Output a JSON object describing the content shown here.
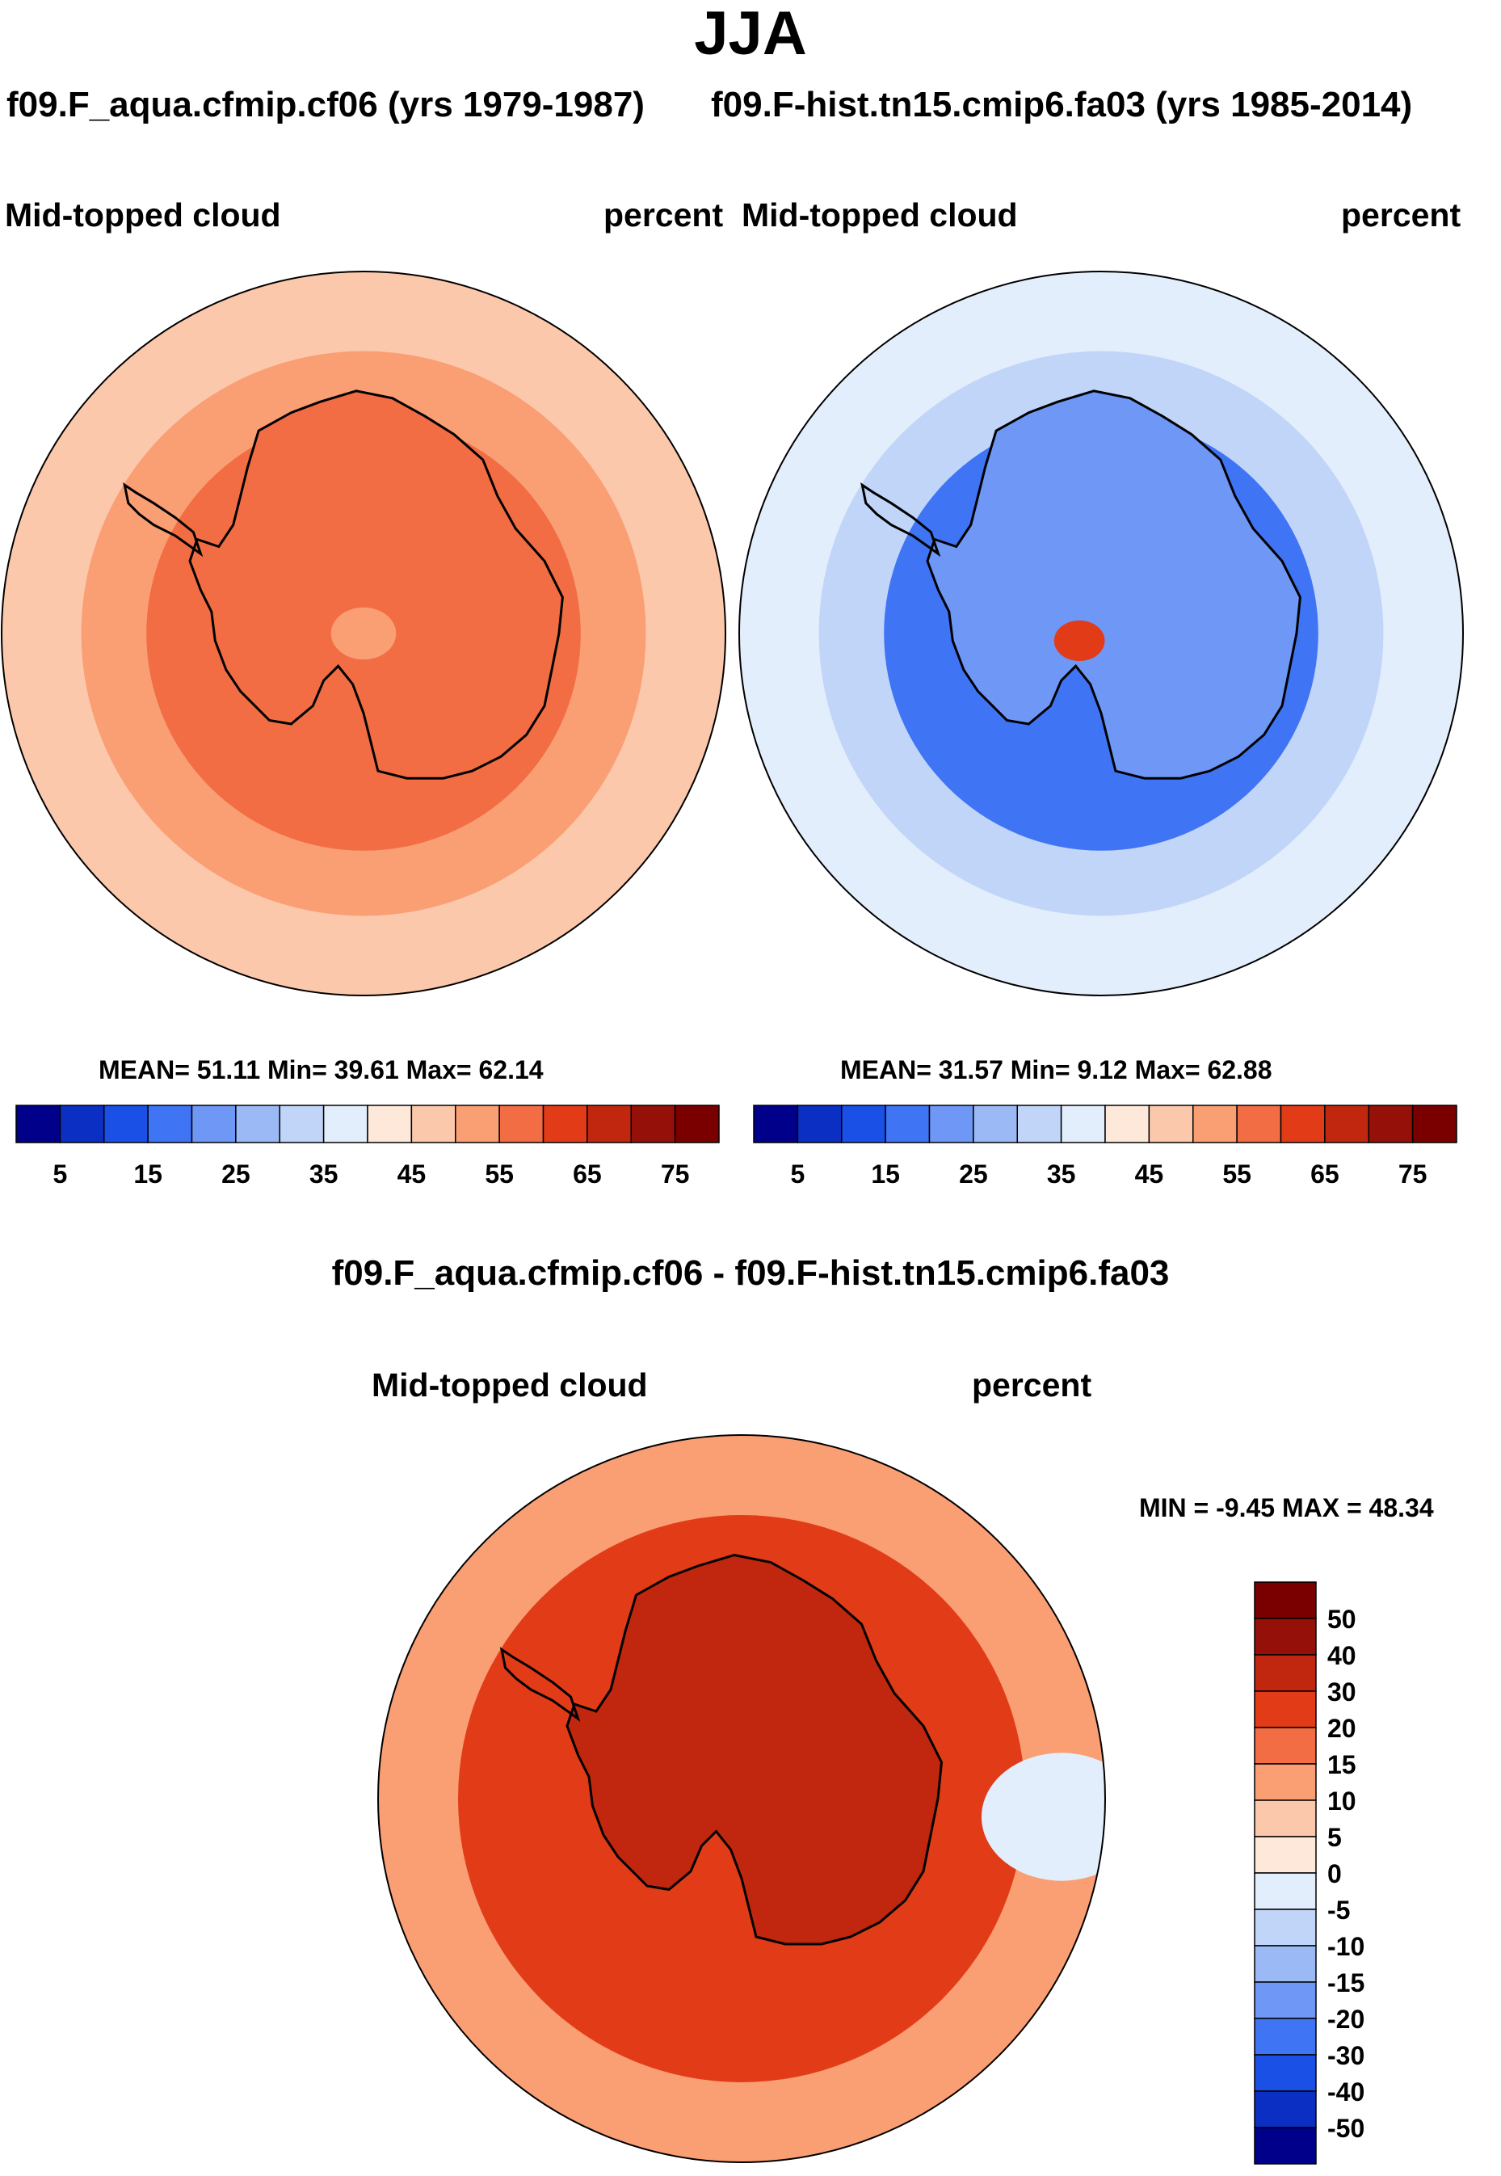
{
  "figure": {
    "title": "JJA",
    "panels": [
      {
        "name": "panel-left",
        "case_title": "f09.F_aqua.cfmip.cf06 (yrs 1979-1987)",
        "variable": "Mid-topped cloud",
        "units": "percent",
        "stats_text": "MEAN=  51.11  Min=  39.61  Max=  62.14"
      },
      {
        "name": "panel-right",
        "case_title": "f09.F-hist.tn15.cmip6.fa03 (yrs 1985-2014)",
        "variable": "Mid-topped cloud",
        "units": "percent",
        "stats_text": "MEAN=  31.57  Min=   9.12  Max=  62.88"
      }
    ],
    "difference": {
      "title": "f09.F_aqua.cfmip.cf06 - f09.F-hist.tn15.cmip6.fa03",
      "variable": "Mid-topped cloud",
      "units": "percent",
      "stats_text": "MIN =  -9.45 MAX =  48.34"
    }
  },
  "colors": {
    "abs_scale": [
      "#00008b",
      "#0a2fc2",
      "#1b50e6",
      "#3f74f5",
      "#6f97f5",
      "#9bb9f4",
      "#c1d5f8",
      "#e3eefc",
      "#fde8da",
      "#fcc8ab",
      "#fa9e74",
      "#f26d43",
      "#e23b17",
      "#c0270e",
      "#941009",
      "#7a0000"
    ],
    "diff_scale": [
      "#00008b",
      "#0a2fc2",
      "#1b50e6",
      "#3f74f5",
      "#6f97f5",
      "#9bb9f4",
      "#c1d5f8",
      "#e3eefc",
      "#fde8da",
      "#fcc8ab",
      "#fa9e74",
      "#f26d43",
      "#e23b17",
      "#c0270e",
      "#941009",
      "#7a0000"
    ],
    "land_outline": "#000000"
  },
  "chart_data": [
    {
      "type": "heatmap",
      "projection": "south-polar-stereographic",
      "title": "f09.F_aqua.cfmip.cf06 (yrs 1979-1987)",
      "variable": "Mid-topped cloud",
      "units": "percent",
      "mean": 51.11,
      "min": 39.61,
      "max": 62.14,
      "field_levels": [
        {
          "region": "outer ocean",
          "value": 45
        },
        {
          "region": "mid ocean",
          "value": 52
        },
        {
          "region": "inner ocean ring",
          "value": 57
        },
        {
          "region": "antarctic interior",
          "value": 58
        },
        {
          "region": "polar plateau spot",
          "value": 52
        }
      ],
      "colorbar": {
        "orientation": "horizontal",
        "tick_labels": [
          "5",
          "15",
          "25",
          "35",
          "45",
          "55",
          "65",
          "75"
        ],
        "levels": [
          5,
          10,
          15,
          20,
          25,
          30,
          35,
          40,
          45,
          50,
          55,
          60,
          65,
          70,
          75
        ]
      }
    },
    {
      "type": "heatmap",
      "projection": "south-polar-stereographic",
      "title": "f09.F-hist.tn15.cmip6.fa03 (yrs 1985-2014)",
      "variable": "Mid-topped cloud",
      "units": "percent",
      "mean": 31.57,
      "min": 9.12,
      "max": 62.88,
      "field_levels": [
        {
          "region": "outer ocean",
          "value": 37
        },
        {
          "region": "mid ocean",
          "value": 33
        },
        {
          "region": "east antarctic interior",
          "value": 17
        },
        {
          "region": "ross sea sector",
          "value": 22
        },
        {
          "region": "west antarctic spot",
          "value": 60
        }
      ],
      "colorbar": {
        "orientation": "horizontal",
        "tick_labels": [
          "5",
          "15",
          "25",
          "35",
          "45",
          "55",
          "65",
          "75"
        ],
        "levels": [
          5,
          10,
          15,
          20,
          25,
          30,
          35,
          40,
          45,
          50,
          55,
          60,
          65,
          70,
          75
        ]
      }
    },
    {
      "type": "heatmap",
      "projection": "south-polar-stereographic",
      "title": "f09.F_aqua.cfmip.cf06 - f09.F-hist.tn15.cmip6.fa03",
      "variable": "Mid-topped cloud",
      "units": "percent",
      "min": -9.45,
      "max": 48.34,
      "field_levels": [
        {
          "region": "outer ocean",
          "value": 12
        },
        {
          "region": "mid ocean",
          "value": 22
        },
        {
          "region": "inner ocean ring",
          "value": 27
        },
        {
          "region": "antarctic interior",
          "value": 38
        },
        {
          "region": "western sector edge",
          "value": -4
        }
      ],
      "colorbar": {
        "orientation": "vertical",
        "tick_labels": [
          "50",
          "40",
          "30",
          "20",
          "15",
          "10",
          "5",
          "0",
          "-5",
          "-10",
          "-15",
          "-20",
          "-30",
          "-40",
          "-50"
        ],
        "levels": [
          50,
          40,
          30,
          20,
          15,
          10,
          5,
          0,
          -5,
          -10,
          -15,
          -20,
          -30,
          -40,
          -50
        ]
      }
    }
  ]
}
